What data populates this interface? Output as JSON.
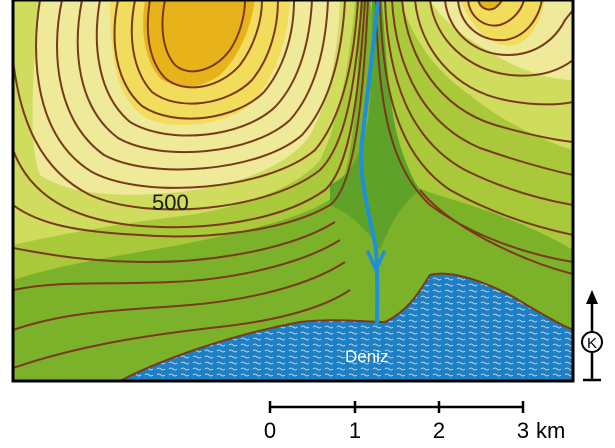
{
  "map": {
    "contour_label": "500",
    "sea_label": "Deniz",
    "north_label": "K",
    "scale": {
      "ticks": [
        "0",
        "1",
        "2",
        "3"
      ],
      "unit": "km"
    },
    "colors": {
      "lowland": "#7cb22a",
      "low_mid": "#a9c93a",
      "mid_green": "#cfdc5e",
      "pale_yellow": "#eeea9a",
      "yellow": "#f2dc5c",
      "gold": "#e7b21a",
      "contour": "#7a3a1a",
      "sea": "#1f7fc4",
      "river": "#1e8fd8",
      "valley": "#5fa22a"
    }
  }
}
